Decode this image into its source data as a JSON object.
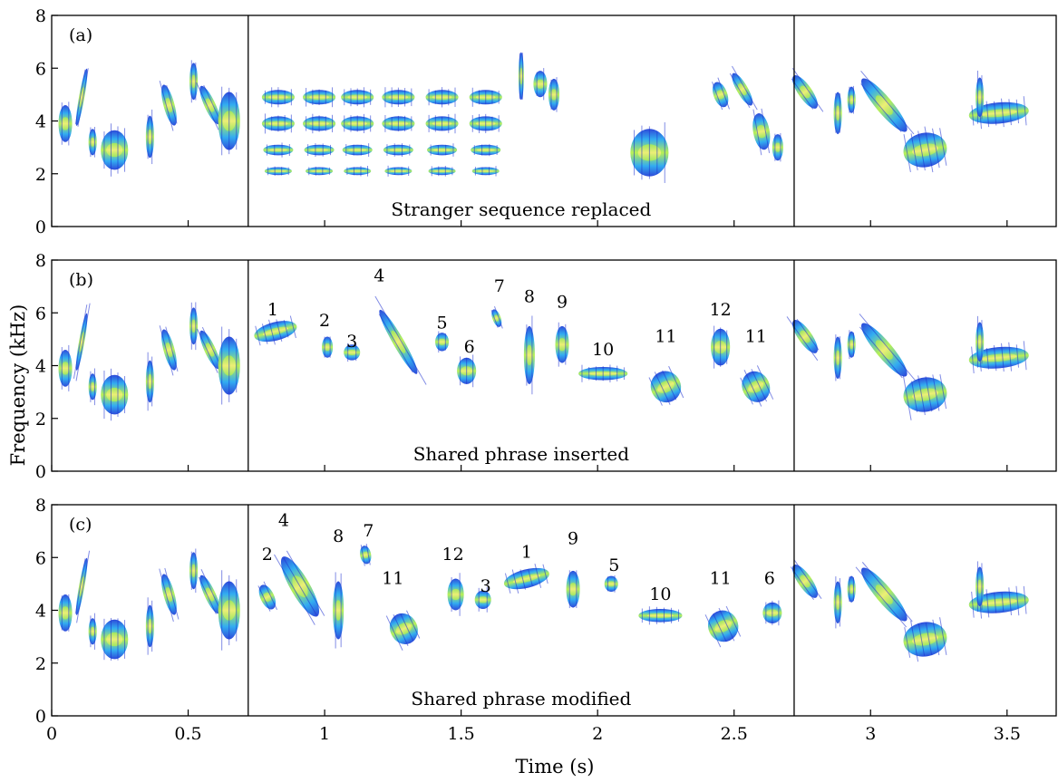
{
  "chart_data": {
    "type": "spectrogram",
    "xlabel": "Time (s)",
    "ylabel": "Frequency (kHz)",
    "xlim": [
      0,
      3.68
    ],
    "ylim": [
      0,
      8
    ],
    "x_ticks": [
      0,
      0.5,
      1,
      1.5,
      2,
      2.5,
      3,
      3.5
    ],
    "x_tick_labels": [
      "0",
      "0.5",
      "1",
      "1.5",
      "2",
      "2.5",
      "3",
      "3.5"
    ],
    "y_ticks": [
      0,
      2,
      4,
      6,
      8
    ],
    "y_tick_labels": [
      "0",
      "2",
      "4",
      "6",
      "8"
    ],
    "section_boundaries_s": [
      0.72,
      2.72
    ],
    "panels": [
      {
        "letter": "(a)",
        "caption": "Stranger sequence replaced",
        "syllable_labels": []
      },
      {
        "letter": "(b)",
        "caption": "Shared phrase inserted",
        "syllable_labels": [
          {
            "text": "1",
            "t": 0.81,
            "f": 5.9
          },
          {
            "text": "2",
            "t": 1.0,
            "f": 5.5
          },
          {
            "text": "3",
            "t": 1.1,
            "f": 4.7
          },
          {
            "text": "4",
            "t": 1.2,
            "f": 7.2
          },
          {
            "text": "5",
            "t": 1.43,
            "f": 5.4
          },
          {
            "text": "6",
            "t": 1.53,
            "f": 4.5
          },
          {
            "text": "7",
            "t": 1.64,
            "f": 6.8
          },
          {
            "text": "8",
            "t": 1.75,
            "f": 6.4
          },
          {
            "text": "9",
            "t": 1.87,
            "f": 6.2
          },
          {
            "text": "10",
            "t": 2.02,
            "f": 4.4
          },
          {
            "text": "11",
            "t": 2.25,
            "f": 4.9
          },
          {
            "text": "12",
            "t": 2.45,
            "f": 5.9
          },
          {
            "text": "11",
            "t": 2.58,
            "f": 4.9
          }
        ]
      },
      {
        "letter": "(c)",
        "caption": "Shared phrase modified",
        "syllable_labels": [
          {
            "text": "2",
            "t": 0.79,
            "f": 5.9
          },
          {
            "text": "4",
            "t": 0.85,
            "f": 7.2
          },
          {
            "text": "8",
            "t": 1.05,
            "f": 6.6
          },
          {
            "text": "7",
            "t": 1.16,
            "f": 6.8
          },
          {
            "text": "11",
            "t": 1.25,
            "f": 5.0
          },
          {
            "text": "12",
            "t": 1.47,
            "f": 5.9
          },
          {
            "text": "3",
            "t": 1.59,
            "f": 4.7
          },
          {
            "text": "1",
            "t": 1.74,
            "f": 6.0
          },
          {
            "text": "9",
            "t": 1.91,
            "f": 6.5
          },
          {
            "text": "5",
            "t": 2.06,
            "f": 5.5
          },
          {
            "text": "10",
            "t": 2.23,
            "f": 4.4
          },
          {
            "text": "11",
            "t": 2.45,
            "f": 5.0
          },
          {
            "text": "6",
            "t": 2.63,
            "f": 5.0
          }
        ]
      }
    ]
  }
}
